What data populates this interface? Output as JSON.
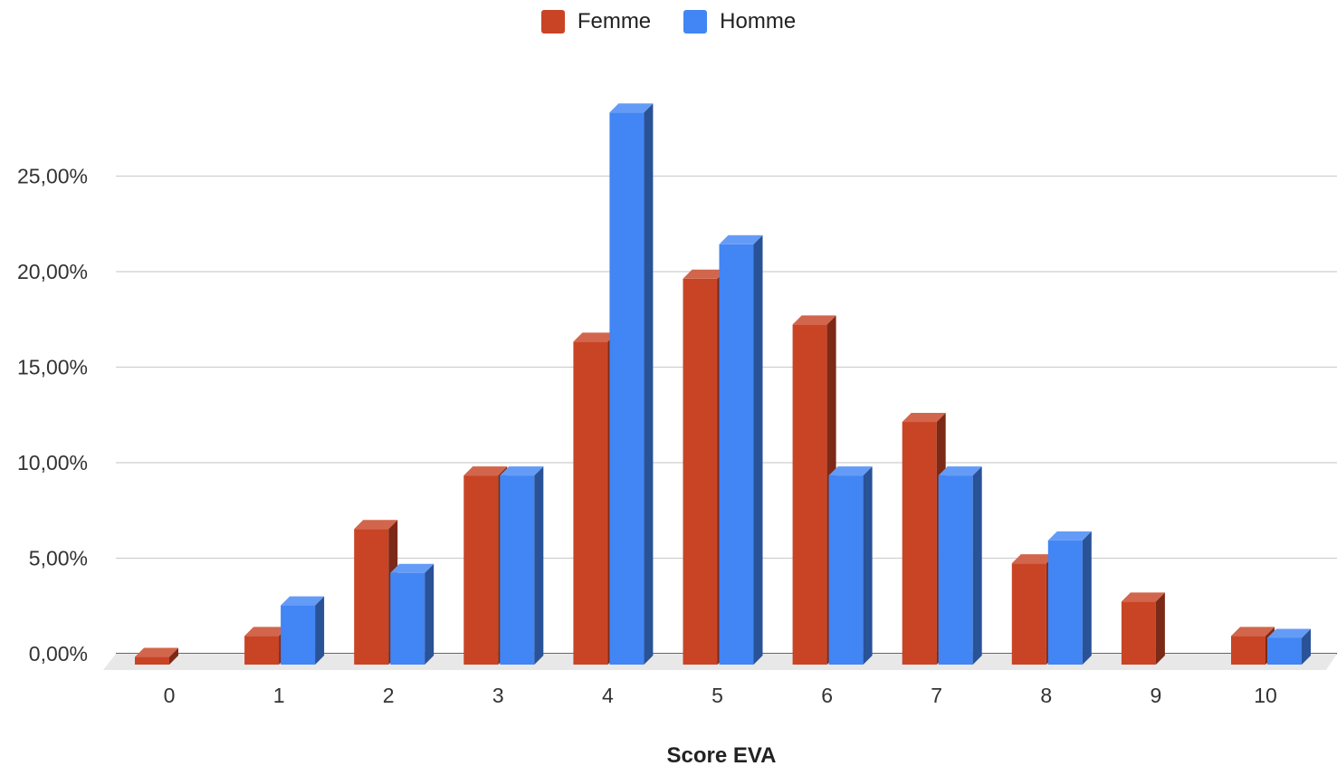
{
  "chart_data": {
    "type": "bar",
    "title": "",
    "xlabel": "Score EVA",
    "ylabel": "",
    "categories": [
      "0",
      "1",
      "2",
      "3",
      "4",
      "5",
      "6",
      "7",
      "8",
      "9",
      "10"
    ],
    "series": [
      {
        "name": "Femme",
        "color": "#c84425",
        "values": [
          0.4,
          1.5,
          7.1,
          9.9,
          16.9,
          20.2,
          17.8,
          12.7,
          5.3,
          3.3,
          1.5
        ]
      },
      {
        "name": "Homme",
        "color": "#4285f4",
        "values": [
          0,
          3.1,
          4.8,
          9.9,
          28.9,
          22.0,
          9.9,
          9.9,
          6.5,
          0,
          1.4
        ]
      }
    ],
    "ylim": [
      0,
      30
    ],
    "yticks": [
      0,
      5,
      10,
      15,
      20,
      25
    ],
    "ytick_labels": [
      "0,00%",
      "5,00%",
      "10,00%",
      "15,00%",
      "20,00%",
      "25,00%"
    ],
    "grid": true,
    "legend_position": "top-center",
    "style": "3d"
  }
}
